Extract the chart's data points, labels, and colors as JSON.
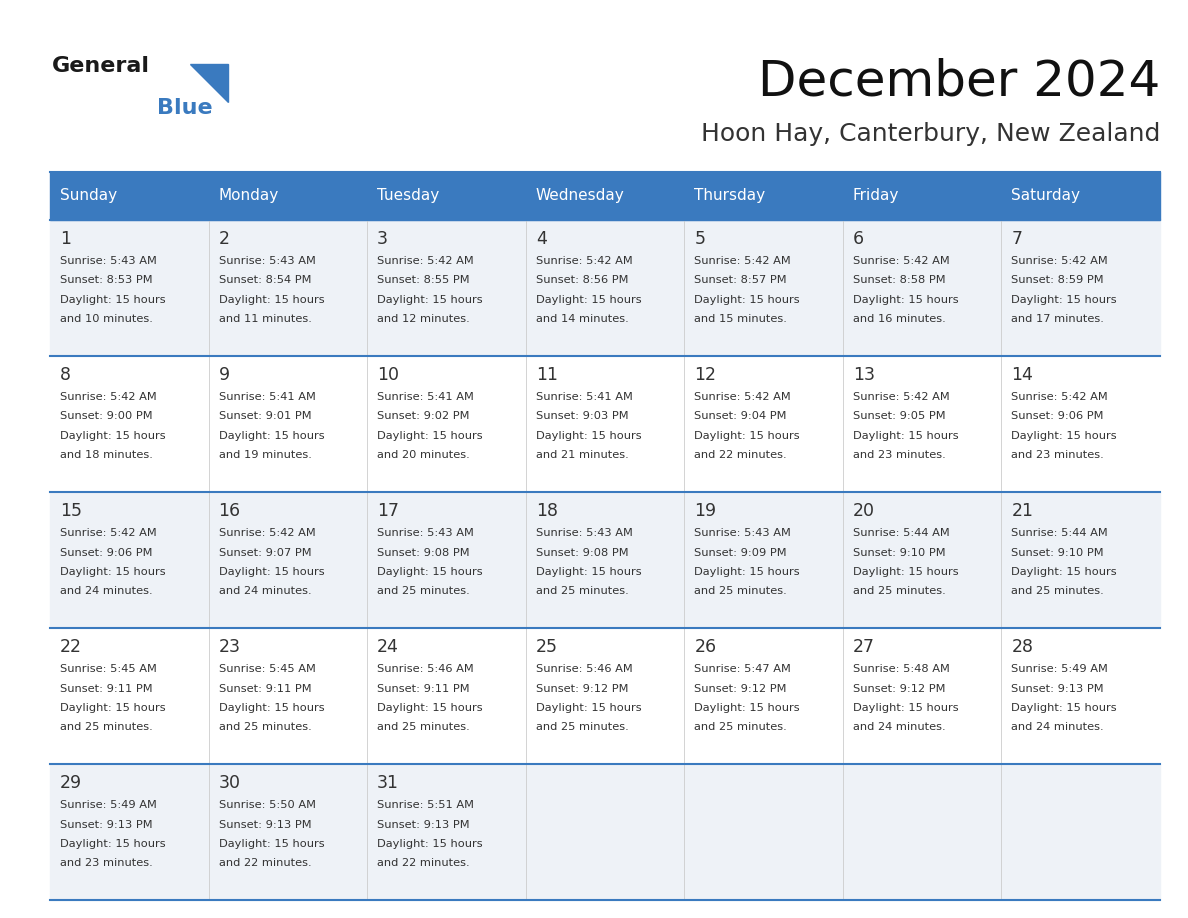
{
  "title": "December 2024",
  "subtitle": "Hoon Hay, Canterbury, New Zealand",
  "header_color": "#3a7abf",
  "header_text_color": "#ffffff",
  "cell_bg_odd": "#eef2f7",
  "cell_bg_even": "#ffffff",
  "text_color": "#333333",
  "day_names": [
    "Sunday",
    "Monday",
    "Tuesday",
    "Wednesday",
    "Thursday",
    "Friday",
    "Saturday"
  ],
  "weeks": [
    [
      {
        "day": 1,
        "sunrise": "5:43 AM",
        "sunset": "8:53 PM",
        "daylight": "15 hours and 10 minutes."
      },
      {
        "day": 2,
        "sunrise": "5:43 AM",
        "sunset": "8:54 PM",
        "daylight": "15 hours and 11 minutes."
      },
      {
        "day": 3,
        "sunrise": "5:42 AM",
        "sunset": "8:55 PM",
        "daylight": "15 hours and 12 minutes."
      },
      {
        "day": 4,
        "sunrise": "5:42 AM",
        "sunset": "8:56 PM",
        "daylight": "15 hours and 14 minutes."
      },
      {
        "day": 5,
        "sunrise": "5:42 AM",
        "sunset": "8:57 PM",
        "daylight": "15 hours and 15 minutes."
      },
      {
        "day": 6,
        "sunrise": "5:42 AM",
        "sunset": "8:58 PM",
        "daylight": "15 hours and 16 minutes."
      },
      {
        "day": 7,
        "sunrise": "5:42 AM",
        "sunset": "8:59 PM",
        "daylight": "15 hours and 17 minutes."
      }
    ],
    [
      {
        "day": 8,
        "sunrise": "5:42 AM",
        "sunset": "9:00 PM",
        "daylight": "15 hours and 18 minutes."
      },
      {
        "day": 9,
        "sunrise": "5:41 AM",
        "sunset": "9:01 PM",
        "daylight": "15 hours and 19 minutes."
      },
      {
        "day": 10,
        "sunrise": "5:41 AM",
        "sunset": "9:02 PM",
        "daylight": "15 hours and 20 minutes."
      },
      {
        "day": 11,
        "sunrise": "5:41 AM",
        "sunset": "9:03 PM",
        "daylight": "15 hours and 21 minutes."
      },
      {
        "day": 12,
        "sunrise": "5:42 AM",
        "sunset": "9:04 PM",
        "daylight": "15 hours and 22 minutes."
      },
      {
        "day": 13,
        "sunrise": "5:42 AM",
        "sunset": "9:05 PM",
        "daylight": "15 hours and 23 minutes."
      },
      {
        "day": 14,
        "sunrise": "5:42 AM",
        "sunset": "9:06 PM",
        "daylight": "15 hours and 23 minutes."
      }
    ],
    [
      {
        "day": 15,
        "sunrise": "5:42 AM",
        "sunset": "9:06 PM",
        "daylight": "15 hours and 24 minutes."
      },
      {
        "day": 16,
        "sunrise": "5:42 AM",
        "sunset": "9:07 PM",
        "daylight": "15 hours and 24 minutes."
      },
      {
        "day": 17,
        "sunrise": "5:43 AM",
        "sunset": "9:08 PM",
        "daylight": "15 hours and 25 minutes."
      },
      {
        "day": 18,
        "sunrise": "5:43 AM",
        "sunset": "9:08 PM",
        "daylight": "15 hours and 25 minutes."
      },
      {
        "day": 19,
        "sunrise": "5:43 AM",
        "sunset": "9:09 PM",
        "daylight": "15 hours and 25 minutes."
      },
      {
        "day": 20,
        "sunrise": "5:44 AM",
        "sunset": "9:10 PM",
        "daylight": "15 hours and 25 minutes."
      },
      {
        "day": 21,
        "sunrise": "5:44 AM",
        "sunset": "9:10 PM",
        "daylight": "15 hours and 25 minutes."
      }
    ],
    [
      {
        "day": 22,
        "sunrise": "5:45 AM",
        "sunset": "9:11 PM",
        "daylight": "15 hours and 25 minutes."
      },
      {
        "day": 23,
        "sunrise": "5:45 AM",
        "sunset": "9:11 PM",
        "daylight": "15 hours and 25 minutes."
      },
      {
        "day": 24,
        "sunrise": "5:46 AM",
        "sunset": "9:11 PM",
        "daylight": "15 hours and 25 minutes."
      },
      {
        "day": 25,
        "sunrise": "5:46 AM",
        "sunset": "9:12 PM",
        "daylight": "15 hours and 25 minutes."
      },
      {
        "day": 26,
        "sunrise": "5:47 AM",
        "sunset": "9:12 PM",
        "daylight": "15 hours and 25 minutes."
      },
      {
        "day": 27,
        "sunrise": "5:48 AM",
        "sunset": "9:12 PM",
        "daylight": "15 hours and 24 minutes."
      },
      {
        "day": 28,
        "sunrise": "5:49 AM",
        "sunset": "9:13 PM",
        "daylight": "15 hours and 24 minutes."
      }
    ],
    [
      {
        "day": 29,
        "sunrise": "5:49 AM",
        "sunset": "9:13 PM",
        "daylight": "15 hours and 23 minutes."
      },
      {
        "day": 30,
        "sunrise": "5:50 AM",
        "sunset": "9:13 PM",
        "daylight": "15 hours and 22 minutes."
      },
      {
        "day": 31,
        "sunrise": "5:51 AM",
        "sunset": "9:13 PM",
        "daylight": "15 hours and 22 minutes."
      },
      null,
      null,
      null,
      null
    ]
  ]
}
